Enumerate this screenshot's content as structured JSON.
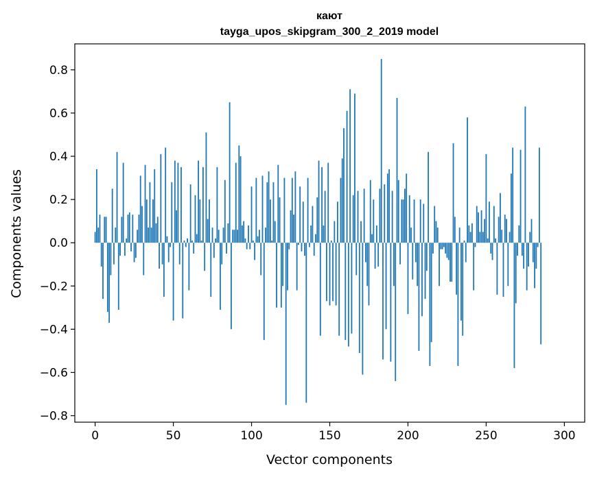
{
  "chart_data": {
    "type": "bar",
    "title": "кают",
    "subtitle": "tayga_upos_skipgram_300_2_2019 model",
    "xlabel": "Vector components",
    "ylabel": "Components values",
    "xlim": [
      -13,
      313
    ],
    "ylim": [
      -0.83,
      0.92
    ],
    "xticks": [
      0,
      50,
      100,
      150,
      200,
      250,
      300
    ],
    "xtick_labels": [
      "0",
      "50",
      "100",
      "150",
      "200",
      "250",
      "300"
    ],
    "yticks": [
      -0.8,
      -0.6,
      -0.4,
      -0.2,
      0.0,
      0.2,
      0.4,
      0.6,
      0.8
    ],
    "ytick_labels": [
      "−0.8",
      "−0.6",
      "−0.4",
      "−0.2",
      "0.0",
      "0.2",
      "0.4",
      "0.6",
      "0.8"
    ],
    "grid": false,
    "bar_color": "#1f77b4",
    "series": [
      {
        "values": [
          0.05,
          0.34,
          0.07,
          0.13,
          -0.11,
          -0.26,
          0.12,
          0.12,
          -0.32,
          -0.37,
          -0.15,
          0.25,
          -0.1,
          0.07,
          0.42,
          -0.31,
          -0.06,
          0.12,
          0.37,
          -0.06,
          0.02,
          0.13,
          0.14,
          -0.04,
          0.13,
          -0.09,
          -0.07,
          0.06,
          0.13,
          0.31,
          0.17,
          -0.15,
          0.36,
          0.2,
          0.07,
          0.28,
          0.07,
          0.2,
          0.34,
          0.09,
          0.12,
          -0.12,
          0.41,
          -0.1,
          -0.25,
          0.44,
          0.03,
          -0.09,
          -0.02,
          0.28,
          -0.36,
          0.38,
          0.15,
          0.37,
          -0.1,
          0.35,
          -0.35,
          0.01,
          -0.02,
          0.02,
          -0.22,
          0.27,
          0.01,
          -0.05,
          0.22,
          0.04,
          0.38,
          0.2,
          0.01,
          0.35,
          -0.13,
          0.51,
          0.11,
          0.2,
          -0.25,
          0.07,
          -0.07,
          0.02,
          0.35,
          0.06,
          -0.31,
          -0.1,
          0.07,
          0.29,
          -0.05,
          0.09,
          0.65,
          -0.4,
          0.06,
          0.06,
          0.37,
          0.06,
          0.45,
          0.4,
          0.08,
          0.1,
          0.02,
          -0.03,
          0.08,
          -0.03,
          0.26,
          0.01,
          -0.08,
          0.3,
          0.03,
          0.06,
          -0.15,
          0.31,
          -0.45,
          0.07,
          0.28,
          0.33,
          0.2,
          0.01,
          0.28,
          0.1,
          -0.3,
          0.36,
          0.21,
          -0.3,
          -0.2,
          0.3,
          -0.75,
          -0.22,
          -0.03,
          0.15,
          0.3,
          0.13,
          0.33,
          -0.22,
          -0.01,
          0.26,
          -0.04,
          0.19,
          -0.06,
          -0.74,
          0.3,
          -0.02,
          0.08,
          0.17,
          -0.06,
          0.04,
          0.21,
          0.38,
          -0.43,
          0.35,
          0.08,
          0.24,
          -0.27,
          0.37,
          -0.29,
          0.01,
          -0.27,
          0.1,
          -0.29,
          0.19,
          -0.43,
          0.3,
          0.39,
          0.53,
          -0.45,
          0.61,
          -0.48,
          0.71,
          -0.42,
          0.22,
          0.69,
          -0.15,
          0.24,
          -0.51,
          0.1,
          -0.61,
          0.25,
          -0.09,
          -0.2,
          -0.29,
          0.29,
          0.04,
          0.2,
          -0.12,
          0.08,
          -0.11,
          0.25,
          0.85,
          -0.54,
          0.27,
          -0.4,
          0.32,
          0.34,
          -0.55,
          0.24,
          -0.2,
          -0.64,
          0.67,
          0.29,
          -0.1,
          0.2,
          0.2,
          0.25,
          0.32,
          -0.33,
          0.22,
          0.07,
          -0.17,
          0.2,
          -0.09,
          -0.2,
          -0.5,
          0.2,
          -0.34,
          0.18,
          -0.26,
          -0.13,
          0.42,
          -0.57,
          -0.46,
          -0.05,
          0.17,
          0.1,
          0.07,
          -0.2,
          -0.03,
          -0.03,
          -0.02,
          -0.05,
          -0.07,
          -0.08,
          -0.18,
          -0.18,
          0.46,
          0.12,
          -0.24,
          -0.57,
          0.07,
          -0.36,
          -0.43,
          0.01,
          -0.09,
          0.58,
          0.08,
          0.05,
          0.09,
          -0.22,
          -0.02,
          0.17,
          0.14,
          0.05,
          0.15,
          0.05,
          0.11,
          0.41,
          0.02,
          0.19,
          -0.05,
          -0.08,
          0.17,
          0.02,
          -0.24,
          0.12,
          0.23,
          0.06,
          -0.25,
          0.13,
          0.11,
          -0.2,
          0.05,
          0.32,
          0.44,
          -0.58,
          -0.28,
          -0.06,
          0.08,
          0.43,
          -0.06,
          -0.12,
          0.63,
          -0.22,
          -0.11,
          0.05,
          0.11,
          -0.09,
          -0.21,
          -0.12,
          -0.02,
          0.44,
          -0.47
        ]
      }
    ]
  }
}
